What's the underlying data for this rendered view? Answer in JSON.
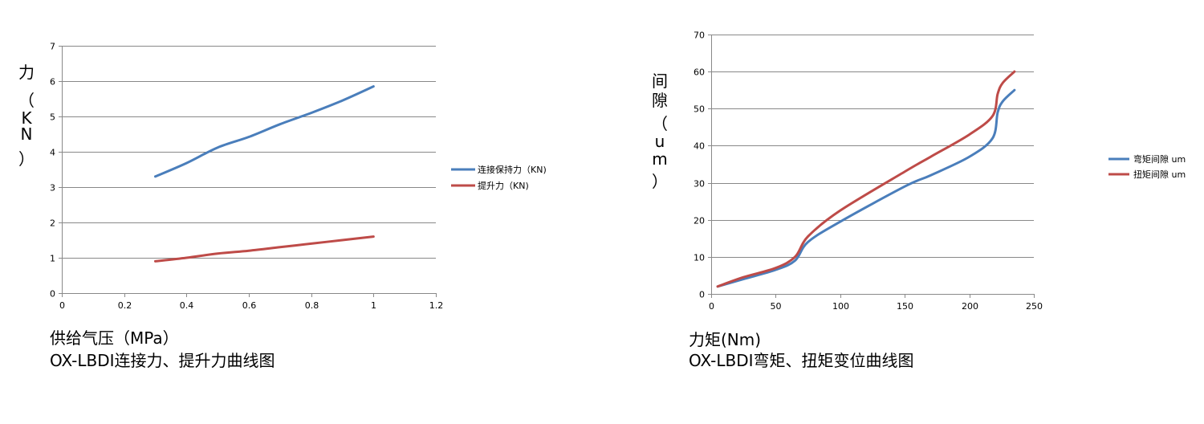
{
  "colors": {
    "blue": "#4a7ebb",
    "red": "#be4b48",
    "grid": "#898989",
    "axis": "#898989"
  },
  "charts": [
    {
      "ylabel_chars": [
        "力",
        "（",
        "K",
        "N",
        "）"
      ],
      "caption_line1": "供给气压（MPa）",
      "caption_line2": "OX-LBDI连接力、提升力曲线图"
    },
    {
      "ylabel_chars": [
        "间",
        "隙",
        "（",
        "u",
        "m",
        "）"
      ],
      "caption_line1": "力矩(Nm)",
      "caption_line2": "OX-LBDI弯矩、扭矩变位曲线图"
    }
  ],
  "chart_data": [
    {
      "type": "line",
      "title": "",
      "xlabel": "供给气压（MPa）",
      "ylabel": "力（KN）",
      "xlim": [
        0,
        1.2
      ],
      "ylim": [
        0,
        7
      ],
      "xticks": [
        "0",
        "0.2",
        "0.4",
        "0.6",
        "0.8",
        "1",
        "1.2"
      ],
      "yticks": [
        "0",
        "1",
        "2",
        "3",
        "4",
        "5",
        "6",
        "7"
      ],
      "grid": true,
      "legend": "right",
      "series": [
        {
          "name": "连接保持力（KN)",
          "color": "#4a7ebb",
          "x": [
            0.3,
            0.4,
            0.5,
            0.6,
            0.7,
            0.8,
            0.9,
            1.0
          ],
          "y": [
            3.3,
            3.68,
            4.12,
            4.42,
            4.78,
            5.1,
            5.45,
            5.85
          ]
        },
        {
          "name": "提升力（KN)",
          "color": "#be4b48",
          "x": [
            0.3,
            0.4,
            0.5,
            0.6,
            0.7,
            0.8,
            0.9,
            1.0
          ],
          "y": [
            0.9,
            1.0,
            1.12,
            1.2,
            1.3,
            1.4,
            1.5,
            1.6
          ]
        }
      ]
    },
    {
      "type": "line",
      "title": "",
      "xlabel": "力矩(Nm)",
      "ylabel": "间隙（um）",
      "xlim": [
        0,
        250
      ],
      "ylim": [
        0,
        70
      ],
      "xticks": [
        "0",
        "50",
        "100",
        "150",
        "200",
        "250"
      ],
      "yticks": [
        "0",
        "10",
        "20",
        "30",
        "40",
        "50",
        "60",
        "70"
      ],
      "grid": true,
      "legend": "right",
      "series": [
        {
          "name": "弯矩间隙 um",
          "color": "#4a7ebb",
          "x": [
            5,
            25,
            50,
            65,
            75,
            100,
            150,
            170,
            200,
            218,
            222,
            226,
            235
          ],
          "y": [
            2,
            4,
            6.5,
            9,
            14,
            19.5,
            29,
            32,
            37,
            42,
            49,
            52,
            55
          ]
        },
        {
          "name": "扭矩间隙 um",
          "color": "#be4b48",
          "x": [
            5,
            25,
            50,
            65,
            75,
            100,
            150,
            170,
            200,
            218,
            222,
            226,
            235
          ],
          "y": [
            2,
            4.5,
            7,
            10,
            15.5,
            22.5,
            33,
            37,
            43,
            48,
            54,
            57,
            60
          ]
        }
      ]
    }
  ]
}
